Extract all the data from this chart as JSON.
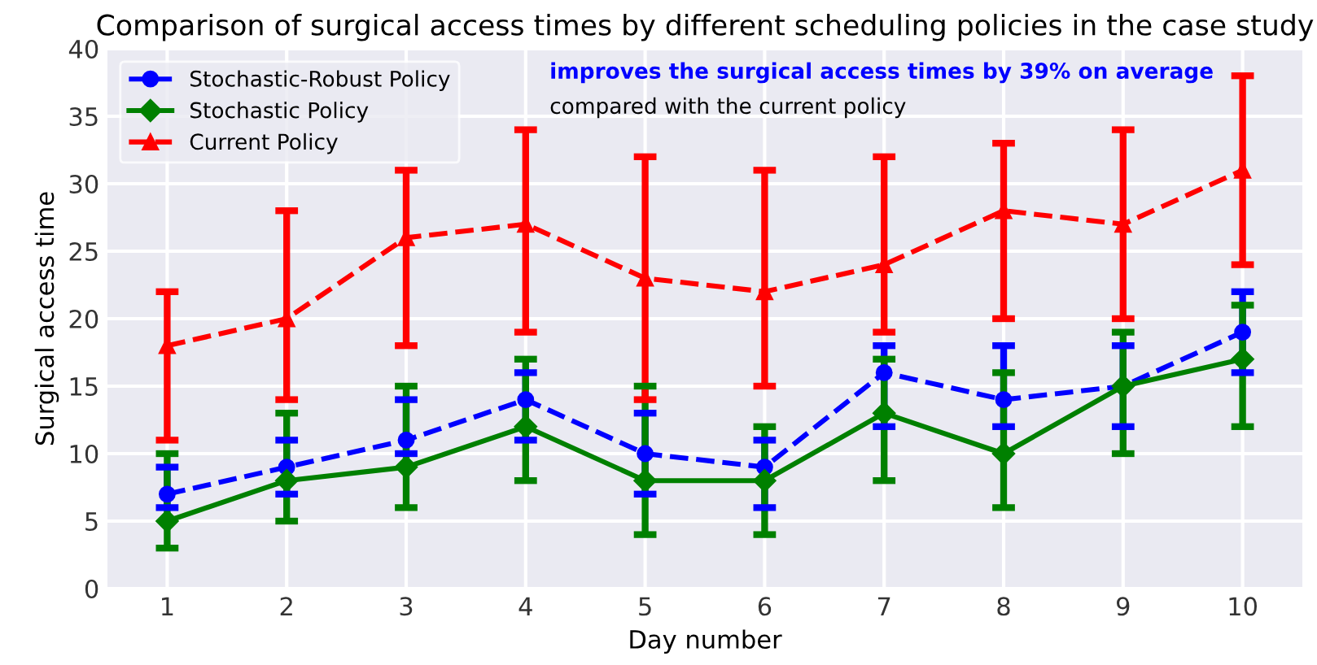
{
  "chart_data": {
    "type": "line",
    "title": "Comparison of surgical access times by different scheduling policies in the case study",
    "xlabel": "Day number",
    "ylabel": "Surgical access time",
    "x": [
      1,
      2,
      3,
      4,
      5,
      6,
      7,
      8,
      9,
      10
    ],
    "xlim": [
      0.5,
      10.5
    ],
    "xticks": [
      1,
      2,
      3,
      4,
      5,
      6,
      7,
      8,
      9,
      10
    ],
    "ylim": [
      0,
      40
    ],
    "yticks": [
      0,
      5,
      10,
      15,
      20,
      25,
      30,
      35,
      40
    ],
    "grid": true,
    "legend": "top left",
    "series": [
      {
        "name": "Stochastic-Robust Policy",
        "color": "#0000ff",
        "marker": "circle",
        "line_style": "dashed",
        "values": [
          7,
          9,
          11,
          14,
          10,
          9,
          16,
          14,
          15,
          19
        ],
        "errors": [
          [
            6,
            9
          ],
          [
            7,
            11
          ],
          [
            10,
            14
          ],
          [
            11,
            16
          ],
          [
            7,
            13
          ],
          [
            6,
            11
          ],
          [
            12,
            18
          ],
          [
            12,
            18
          ],
          [
            12,
            18
          ],
          [
            16,
            22
          ]
        ]
      },
      {
        "name": "Stochastic Policy",
        "color": "#008000",
        "marker": "diamond",
        "line_style": "solid",
        "values": [
          5,
          8,
          9,
          12,
          8,
          8,
          13,
          10,
          15,
          17
        ],
        "errors": [
          [
            3,
            10
          ],
          [
            5,
            13
          ],
          [
            6,
            15
          ],
          [
            8,
            17
          ],
          [
            4,
            15
          ],
          [
            4,
            12
          ],
          [
            8,
            17
          ],
          [
            6,
            16
          ],
          [
            10,
            19
          ],
          [
            12,
            21
          ]
        ]
      },
      {
        "name": "Current Policy",
        "color": "#ff0000",
        "marker": "triangle",
        "line_style": "dashed",
        "values": [
          18,
          20,
          26,
          27,
          23,
          22,
          24,
          28,
          27,
          31
        ],
        "errors": [
          [
            11,
            22
          ],
          [
            14,
            28
          ],
          [
            18,
            31
          ],
          [
            19,
            34
          ],
          [
            14,
            32
          ],
          [
            15,
            31
          ],
          [
            19,
            32
          ],
          [
            20,
            33
          ],
          [
            20,
            34
          ],
          [
            24,
            38
          ]
        ]
      }
    ],
    "annotations": [
      "improves the surgical access times by 39% on average",
      "compared with the current policy"
    ]
  }
}
